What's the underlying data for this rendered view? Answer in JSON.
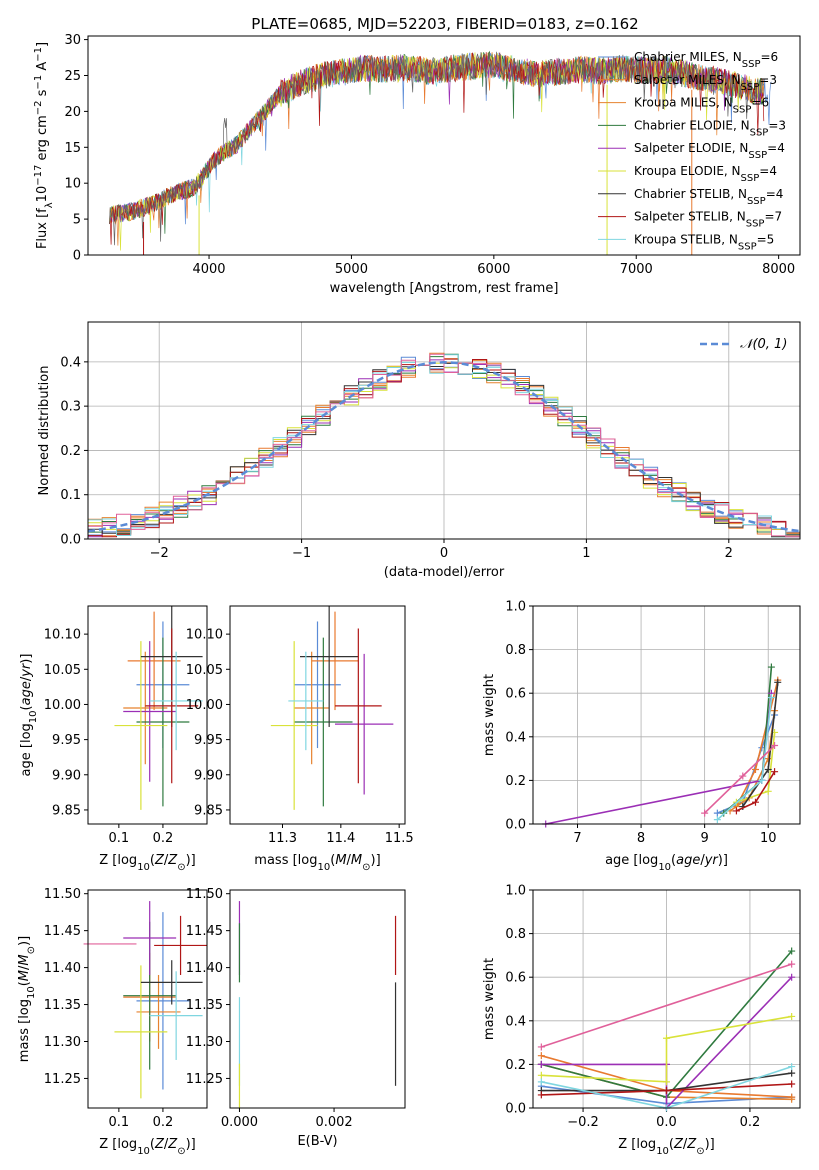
{
  "figure": {
    "title": "PLATE=0685, MJD=52203, FIBERID=0183, z=0.162"
  },
  "colors": {
    "Chabrier MILES": "#5b8bd6",
    "Salpeter MILES": "#e87a30",
    "Kroupa MILES": "#e6822f",
    "Chabrier ELODIE": "#2f7a3f",
    "Salpeter ELODIE": "#9b2fb5",
    "Kroupa ELODIE": "#d9e23a",
    "Chabrier STELIB": "#333333",
    "Salpeter STELIB": "#b01616",
    "Kroupa STELIB": "#7fd6e0",
    "gaussian": "#5b8bd6",
    "hist_extra": "#e0609a"
  },
  "chart_data": [
    {
      "id": "spectrum",
      "type": "line",
      "title": "PLATE=0685, MJD=52203, FIBERID=0183, z=0.162",
      "xlabel": "wavelength [Angstrom, rest frame]",
      "ylabel": "Flux [f_λ 10^-17 erg cm^-2 s^-1 A^-1]",
      "xlim": [
        3150,
        8150
      ],
      "ylim": [
        0,
        30.5
      ],
      "xticks": [
        4000,
        5000,
        6000,
        7000,
        8000
      ],
      "yticks": [
        0,
        5,
        10,
        15,
        20,
        25,
        30
      ],
      "legend_position": "top-right",
      "x": [
        3300,
        3450,
        3600,
        3750,
        3900,
        4050,
        4200,
        4350,
        4500,
        4650,
        4800,
        4950,
        5100,
        5250,
        5400,
        5550,
        5700,
        5850,
        6000,
        6150,
        6300,
        6450,
        6600,
        6750,
        6900,
        7050,
        7200,
        7350,
        7500,
        7650,
        7800,
        7950
      ],
      "y": [
        5.6,
        6.0,
        7.0,
        8.5,
        9.5,
        13.5,
        15.5,
        19.0,
        22.5,
        24.0,
        25.0,
        25.5,
        26.0,
        25.8,
        26.2,
        25.5,
        26.0,
        26.3,
        26.5,
        25.8,
        25.2,
        25.5,
        25.8,
        25.6,
        26.0,
        25.7,
        25.8,
        25.2,
        24.5,
        24.0,
        23.0,
        22.5
      ],
      "series": [
        {
          "name": "Chabrier MILES, N_SSP=6",
          "label": "Chabrier MILES",
          "nssp": "6"
        },
        {
          "name": "Salpeter MILES, N_SSP=3",
          "label": "Salpeter MILES",
          "nssp": "3"
        },
        {
          "name": "Kroupa MILES, N_SSP=6",
          "label": "Kroupa MILES",
          "nssp": "6"
        },
        {
          "name": "Chabrier ELODIE, N_SSP=3",
          "label": "Chabrier ELODIE",
          "nssp": "3"
        },
        {
          "name": "Salpeter ELODIE, N_SSP=4",
          "label": "Salpeter ELODIE",
          "nssp": "4"
        },
        {
          "name": "Kroupa ELODIE, N_SSP=4",
          "label": "Kroupa ELODIE",
          "nssp": "4"
        },
        {
          "name": "Chabrier STELIB, N_SSP=4",
          "label": "Chabrier STELIB",
          "nssp": "4"
        },
        {
          "name": "Salpeter STELIB, N_SSP=7",
          "label": "Salpeter STELIB",
          "nssp": "7"
        },
        {
          "name": "Kroupa STELIB, N_SSP=5",
          "label": "Kroupa STELIB",
          "nssp": "5"
        }
      ]
    },
    {
      "id": "residuals",
      "type": "line",
      "xlabel": "(data-model)/error",
      "ylabel": "Normed distribution",
      "xlim": [
        -2.5,
        2.5
      ],
      "ylim": [
        0,
        0.49
      ],
      "xticks": [
        -2,
        -1,
        0,
        1,
        2
      ],
      "yticks": [
        0.0,
        0.1,
        0.2,
        0.3,
        0.4
      ],
      "grid": true,
      "legend": "𝒩(0, 1)",
      "legend_position": "top-right",
      "bin_width": 0.1
    },
    {
      "id": "age_vs_Z",
      "type": "scatter",
      "xlabel": "Z [log10(Z/Z☉)]",
      "ylabel": "age [log10(age/yr)]",
      "xlim": [
        0.03,
        0.3
      ],
      "ylim": [
        9.83,
        10.14
      ],
      "xticks": [
        0.1,
        0.2
      ],
      "yticks": [
        9.85,
        9.9,
        9.95,
        10.0,
        10.05,
        10.1
      ],
      "points": [
        {
          "series": "Chabrier MILES",
          "x": 0.2,
          "y": 10.028,
          "xerr": 0.06,
          "yerr": 0.09
        },
        {
          "series": "Salpeter MILES",
          "x": 0.18,
          "y": 10.062,
          "xerr": 0.06,
          "yerr": 0.07
        },
        {
          "series": "Kroupa MILES",
          "x": 0.16,
          "y": 9.995,
          "xerr": 0.05,
          "yerr": 0.08
        },
        {
          "series": "Chabrier ELODIE",
          "x": 0.2,
          "y": 9.975,
          "xerr": 0.06,
          "yerr": 0.12
        },
        {
          "series": "Salpeter ELODIE",
          "x": 0.17,
          "y": 9.99,
          "xerr": 0.06,
          "yerr": 0.1
        },
        {
          "series": "Kroupa ELODIE",
          "x": 0.15,
          "y": 9.97,
          "xerr": 0.06,
          "yerr": 0.12
        },
        {
          "series": "Chabrier STELIB",
          "x": 0.22,
          "y": 10.068,
          "xerr": 0.07,
          "yerr": 0.1
        },
        {
          "series": "Salpeter STELIB",
          "x": 0.22,
          "y": 9.998,
          "xerr": 0.06,
          "yerr": 0.11
        },
        {
          "series": "Kroupa STELIB",
          "x": 0.23,
          "y": 10.005,
          "xerr": 0.06,
          "yerr": 0.07
        }
      ]
    },
    {
      "id": "age_vs_mass",
      "type": "scatter",
      "xlabel": "mass [log10(M/M☉)]",
      "xlim": [
        11.21,
        11.51
      ],
      "ylim": [
        9.83,
        10.14
      ],
      "xticks": [
        11.3,
        11.4,
        11.5
      ],
      "yticks": [
        9.85,
        9.9,
        9.95,
        10.0,
        10.05,
        10.1
      ],
      "points": [
        {
          "series": "Chabrier MILES",
          "x": 11.36,
          "y": 10.028,
          "xerr": 0.04,
          "yerr": 0.09
        },
        {
          "series": "Salpeter MILES",
          "x": 11.39,
          "y": 10.062,
          "xerr": 0.04,
          "yerr": 0.07
        },
        {
          "series": "Kroupa MILES",
          "x": 11.35,
          "y": 9.995,
          "xerr": 0.03,
          "yerr": 0.08
        },
        {
          "series": "Chabrier ELODIE",
          "x": 11.37,
          "y": 9.975,
          "xerr": 0.05,
          "yerr": 0.12
        },
        {
          "series": "Salpeter ELODIE",
          "x": 11.44,
          "y": 9.972,
          "xerr": 0.05,
          "yerr": 0.1
        },
        {
          "series": "Kroupa ELODIE",
          "x": 11.32,
          "y": 9.97,
          "xerr": 0.04,
          "yerr": 0.12
        },
        {
          "series": "Chabrier STELIB",
          "x": 11.38,
          "y": 10.068,
          "xerr": 0.05,
          "yerr": 0.1
        },
        {
          "series": "Salpeter STELIB",
          "x": 11.43,
          "y": 9.998,
          "xerr": 0.04,
          "yerr": 0.11
        },
        {
          "series": "Kroupa STELIB",
          "x": 11.34,
          "y": 10.005,
          "xerr": 0.03,
          "yerr": 0.07
        }
      ]
    },
    {
      "id": "weight_vs_age",
      "type": "line",
      "xlabel": "age [log10(age/yr)]",
      "ylabel": "mass weight",
      "xlim": [
        6.3,
        10.5
      ],
      "ylim": [
        0,
        1.0
      ],
      "xticks": [
        7,
        8,
        9,
        10
      ],
      "yticks": [
        0.0,
        0.2,
        0.4,
        0.6,
        0.8,
        1.0
      ],
      "grid": true,
      "series": [
        {
          "name": "Chabrier MILES",
          "x": [
            9.2,
            9.6,
            9.9,
            10.1
          ],
          "y": [
            0.05,
            0.1,
            0.35,
            0.5
          ]
        },
        {
          "name": "Salpeter MILES",
          "x": [
            9.5,
            9.8,
            10.15
          ],
          "y": [
            0.08,
            0.25,
            0.66
          ]
        },
        {
          "name": "Kroupa MILES",
          "x": [
            9.4,
            9.7,
            10.0,
            10.1
          ],
          "y": [
            0.06,
            0.12,
            0.3,
            0.52
          ]
        },
        {
          "name": "Chabrier ELODIE",
          "x": [
            9.3,
            9.9,
            10.05
          ],
          "y": [
            0.05,
            0.2,
            0.72
          ]
        },
        {
          "name": "Salpeter ELODIE",
          "x": [
            6.5,
            9.9,
            10.05
          ],
          "y": [
            0.0,
            0.2,
            0.6
          ]
        },
        {
          "name": "Kroupa ELODIE",
          "x": [
            9.5,
            10.0,
            10.1
          ],
          "y": [
            0.1,
            0.15,
            0.42
          ]
        },
        {
          "name": "Chabrier STELIB",
          "x": [
            9.6,
            10.0,
            10.15
          ],
          "y": [
            0.08,
            0.25,
            0.65
          ]
        },
        {
          "name": "Salpeter STELIB",
          "x": [
            9.5,
            9.8,
            10.1
          ],
          "y": [
            0.06,
            0.1,
            0.24
          ]
        },
        {
          "name": "Kroupa STELIB",
          "x": [
            9.2,
            9.9,
            10.05
          ],
          "y": [
            0.02,
            0.2,
            0.58
          ]
        },
        {
          "name": "extra",
          "x": [
            9.0,
            9.6,
            10.1
          ],
          "y": [
            0.05,
            0.22,
            0.36
          ]
        }
      ]
    },
    {
      "id": "mass_vs_Z",
      "type": "scatter",
      "xlabel": "Z [log10(Z/Z☉)]",
      "ylabel": "mass [log10(M/M☉)]",
      "xlim": [
        0.03,
        0.3
      ],
      "ylim": [
        11.21,
        11.505
      ],
      "xticks": [
        0.1,
        0.2
      ],
      "yticks": [
        11.25,
        11.3,
        11.35,
        11.4,
        11.45,
        11.5
      ],
      "points": [
        {
          "series": "Chabrier MILES",
          "x": 0.2,
          "y": 11.355,
          "xerr": 0.06,
          "yerr": 0.12
        },
        {
          "series": "Salpeter MILES",
          "x": 0.17,
          "y": 11.36,
          "xerr": 0.06,
          "yerr": 0.06
        },
        {
          "series": "Kroupa MILES",
          "x": 0.19,
          "y": 11.34,
          "xerr": 0.05,
          "yerr": 0.05
        },
        {
          "series": "Chabrier ELODIE",
          "x": 0.17,
          "y": 11.362,
          "xerr": 0.06,
          "yerr": 0.1
        },
        {
          "series": "Salpeter ELODIE",
          "x": 0.17,
          "y": 11.44,
          "xerr": 0.06,
          "yerr": 0.05
        },
        {
          "series": "Kroupa ELODIE",
          "x": 0.15,
          "y": 11.313,
          "xerr": 0.06,
          "yerr": 0.09
        },
        {
          "series": "Chabrier STELIB",
          "x": 0.22,
          "y": 11.38,
          "xerr": 0.07,
          "yerr": 0.03
        },
        {
          "series": "Salpeter STELIB",
          "x": 0.24,
          "y": 11.43,
          "xerr": 0.06,
          "yerr": 0.04
        },
        {
          "series": "Kroupa STELIB",
          "x": 0.23,
          "y": 11.335,
          "xerr": 0.06,
          "yerr": 0.06
        },
        {
          "series": "extra",
          "x": 0.08,
          "y": 11.432,
          "xerr": 0.06,
          "yerr": 0.0
        }
      ]
    },
    {
      "id": "mass_vs_EBV",
      "type": "scatter",
      "xlabel": "E(B-V)",
      "xlim": [
        -0.0002,
        0.0035
      ],
      "ylim": [
        11.21,
        11.505
      ],
      "xticks": [
        0.0,
        0.002
      ],
      "xtick_labels": [
        "0.000",
        "0.002"
      ],
      "yticks": [
        11.25,
        11.3,
        11.35,
        11.4,
        11.45,
        11.5
      ],
      "points": [
        {
          "series": "Salpeter ELODIE",
          "x": 0.0,
          "y": 11.44,
          "yerr": 0.05
        },
        {
          "series": "Chabrier ELODIE",
          "x": 0.0,
          "y": 11.42,
          "yerr": 0.04
        },
        {
          "series": "Kroupa STELIB",
          "x": 0.0,
          "y": 11.3,
          "yerr": 0.06
        },
        {
          "series": "Kroupa ELODIE",
          "x": 0.0,
          "y": 11.24,
          "yerr": 0.03
        },
        {
          "series": "Salpeter STELIB",
          "x": 0.0033,
          "y": 11.43,
          "yerr": 0.04
        },
        {
          "series": "Chabrier STELIB",
          "x": 0.0033,
          "y": 11.31,
          "yerr": 0.07
        }
      ]
    },
    {
      "id": "weight_vs_Z",
      "type": "line",
      "xlabel": "Z [log10(Z/Z☉)]",
      "ylabel": "mass weight",
      "xlim": [
        -0.32,
        0.32
      ],
      "ylim": [
        0,
        1.0
      ],
      "xticks": [
        -0.2,
        0.0,
        0.2
      ],
      "xtick_labels": [
        "−0.2",
        "0.0",
        "0.2"
      ],
      "yticks": [
        0.0,
        0.2,
        0.4,
        0.6,
        0.8,
        1.0
      ],
      "grid": true,
      "series": [
        {
          "name": "Chabrier MILES",
          "x": [
            -0.3,
            0.0,
            0.3
          ],
          "y": [
            0.1,
            0.02,
            0.05
          ]
        },
        {
          "name": "Salpeter MILES",
          "x": [
            -0.3,
            0.0,
            0.3
          ],
          "y": [
            0.24,
            0.08,
            0.05
          ]
        },
        {
          "name": "Kroupa MILES",
          "x": [
            -0.3,
            0.0,
            0.3
          ],
          "y": [
            0.2,
            0.05,
            0.04
          ]
        },
        {
          "name": "Chabrier ELODIE",
          "x": [
            -0.3,
            0.0,
            0.3
          ],
          "y": [
            0.2,
            0.05,
            0.72
          ]
        },
        {
          "name": "Salpeter ELODIE",
          "x": [
            -0.3,
            0.0,
            0.0,
            0.3
          ],
          "y": [
            0.2,
            0.2,
            0.0,
            0.6
          ]
        },
        {
          "name": "Kroupa ELODIE",
          "x": [
            -0.3,
            0.0,
            0.0,
            0.3
          ],
          "y": [
            0.15,
            0.12,
            0.32,
            0.42
          ]
        },
        {
          "name": "Chabrier STELIB",
          "x": [
            -0.3,
            0.0,
            0.3
          ],
          "y": [
            0.08,
            0.08,
            0.16
          ]
        },
        {
          "name": "Salpeter STELIB",
          "x": [
            -0.3,
            0.0,
            0.3
          ],
          "y": [
            0.06,
            0.08,
            0.11
          ]
        },
        {
          "name": "Kroupa STELIB",
          "x": [
            -0.3,
            0.0,
            0.3
          ],
          "y": [
            0.12,
            0.0,
            0.19
          ]
        },
        {
          "name": "extra",
          "x": [
            -0.3,
            0.3
          ],
          "y": [
            0.28,
            0.66
          ]
        }
      ]
    }
  ]
}
